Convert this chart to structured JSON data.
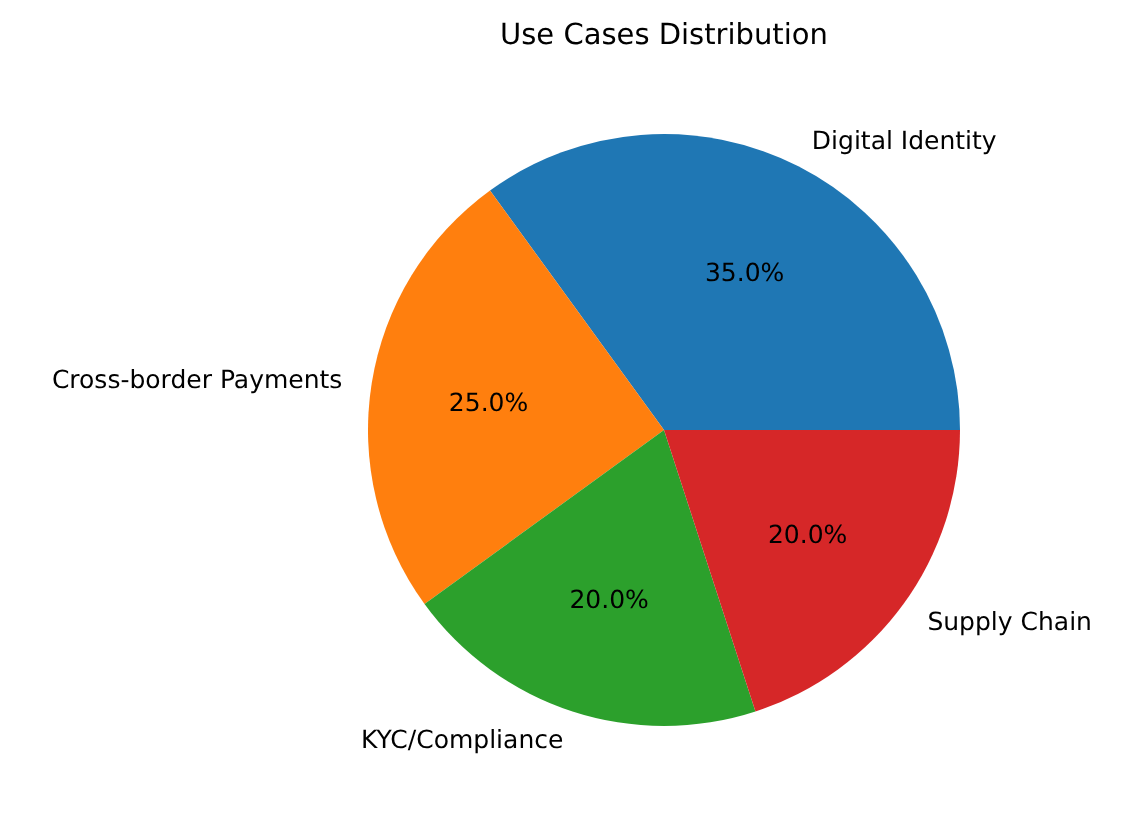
{
  "chart_data": {
    "type": "pie",
    "title": "Use Cases Distribution",
    "categories": [
      "Digital Identity",
      "Cross-border Payments",
      "KYC/Compliance",
      "Supply Chain"
    ],
    "values": [
      35,
      25,
      20,
      20
    ],
    "colors": [
      "#1f77b4",
      "#ff7f0e",
      "#2ca02c",
      "#d62728"
    ],
    "value_labels": [
      "35.0%",
      "25.0%",
      "20.0%",
      "20.0%"
    ]
  }
}
